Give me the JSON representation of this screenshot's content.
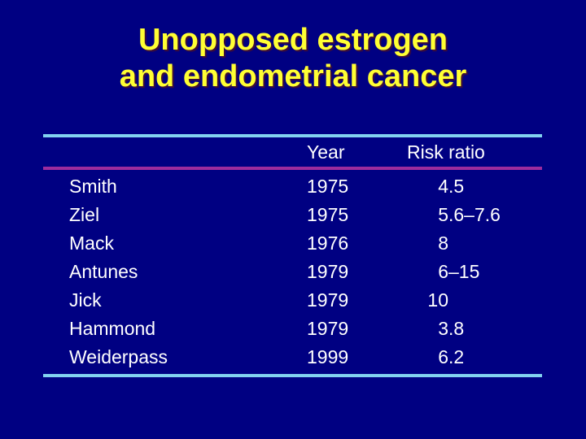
{
  "slide": {
    "background_color": "#000082",
    "accent_cyan": "#82d2f0",
    "accent_magenta": "#9d2c9d",
    "title_color": "#ffff33",
    "text_color": "#ffffff"
  },
  "title": {
    "line1": "Unopposed estrogen",
    "line2": "and endometrial cancer"
  },
  "table": {
    "columns": {
      "author": "",
      "year": "Year",
      "risk": "Risk ratio"
    },
    "rows": [
      {
        "name": "Smith",
        "year": "1975",
        "risk": "4.5"
      },
      {
        "name": "Ziel",
        "year": "1975",
        "risk": "5.6–7.6"
      },
      {
        "name": "Mack",
        "year": "1976",
        "risk": "8"
      },
      {
        "name": "Antunes",
        "year": "1979",
        "risk": "6–15"
      },
      {
        "name": "Jick",
        "year": "1979",
        "risk": "10"
      },
      {
        "name": "Hammond",
        "year": "1979",
        "risk": "3.8"
      },
      {
        "name": "Weiderpass",
        "year": "1999",
        "risk": "6.2"
      }
    ]
  }
}
